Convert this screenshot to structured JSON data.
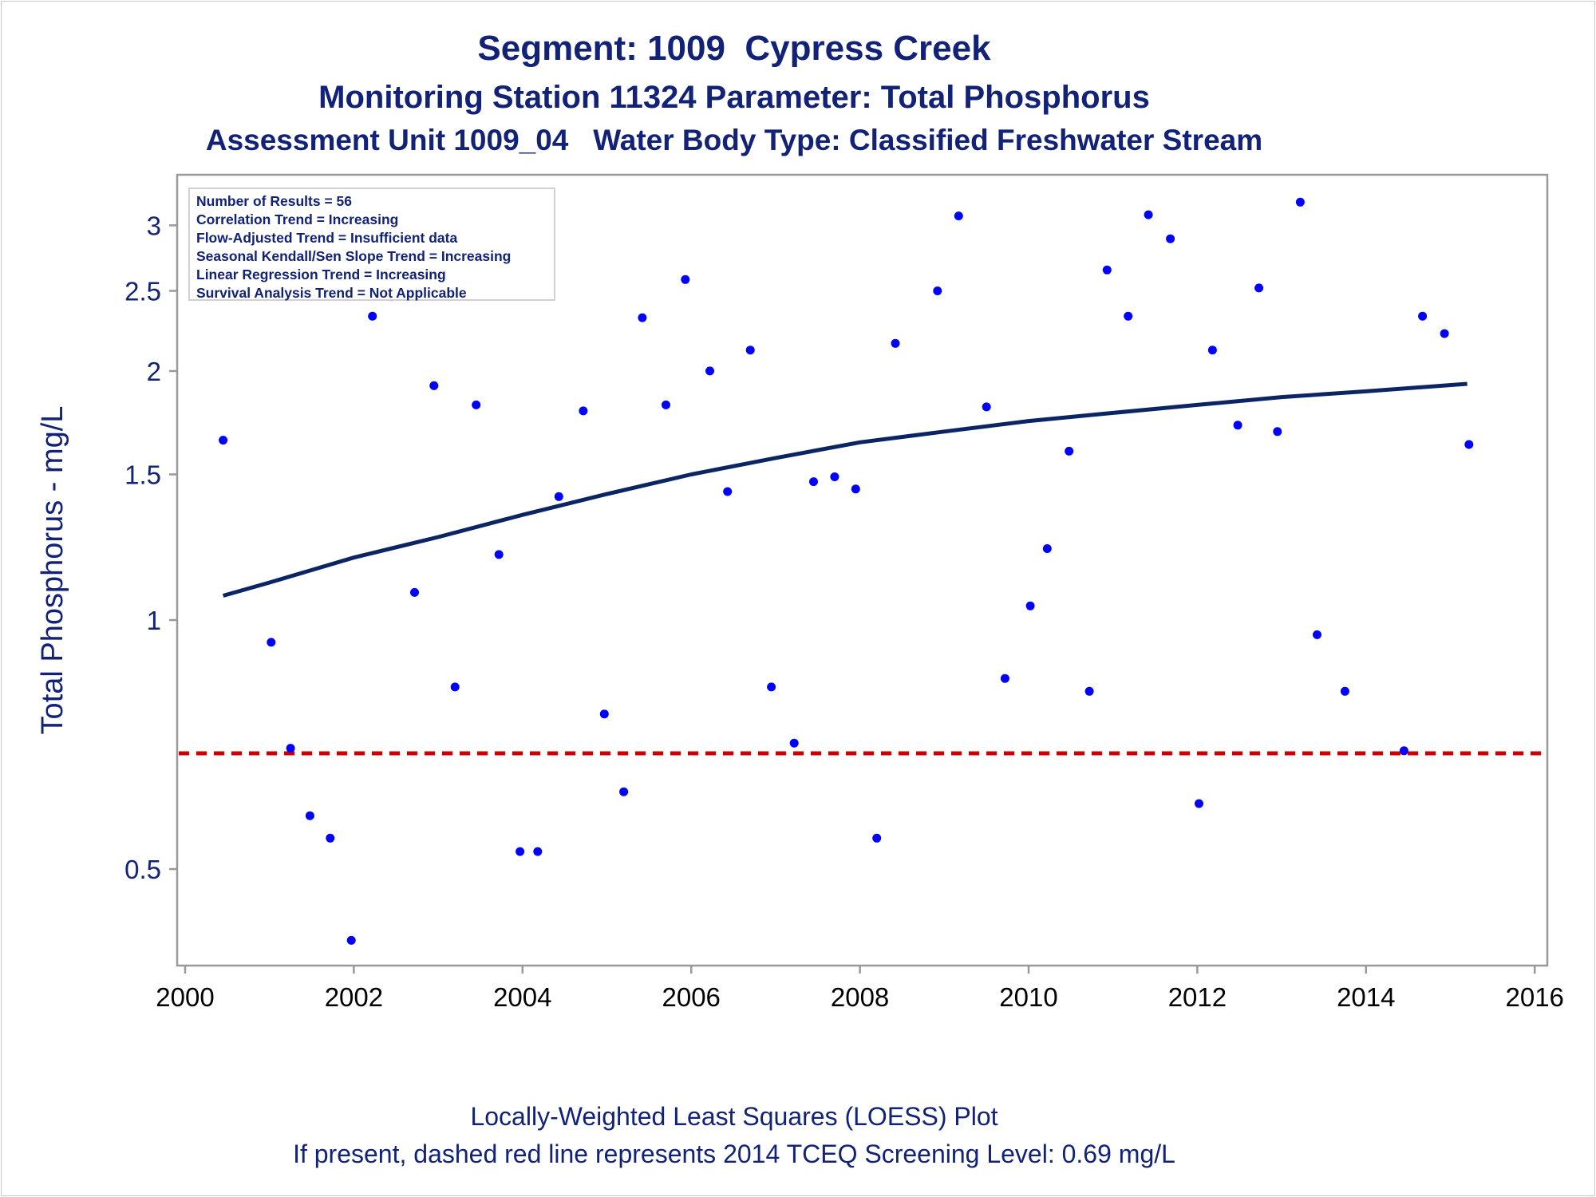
{
  "title": "Segment: 1009  Cypress Creek",
  "subtitle1": "Monitoring Station 11324 Parameter: Total Phosphorus",
  "subtitle2": "Assessment Unit 1009_04   Water Body Type: Classified Freshwater Stream",
  "stats": [
    "Number of Results = 56",
    "Correlation Trend = Increasing",
    "Flow-Adjusted Trend = Insufficient data",
    "Seasonal Kendall/Sen Slope Trend = Increasing",
    "Linear Regression Trend = Increasing",
    "Survival Analysis Trend = Not Applicable"
  ],
  "footer1": "Locally-Weighted Least Squares (LOESS) Plot",
  "footer2": "If present, dashed red line represents 2014 TCEQ Screening Level: 0.69 mg/L",
  "colors": {
    "text": "#112277",
    "points": "#0000ff",
    "loess": "#0b2463",
    "screening": "#cc0000",
    "axis": "#999999"
  },
  "chart_data": {
    "type": "scatter",
    "title": "Segment: 1009  Cypress Creek",
    "xlabel": "",
    "ylabel": "Total Phosphorus - mg/L",
    "y_scale": "log",
    "xlim": [
      2000,
      2016
    ],
    "ylim": [
      0.38,
      3.4
    ],
    "x_ticks": [
      2000,
      2002,
      2004,
      2006,
      2008,
      2010,
      2012,
      2014,
      2016
    ],
    "y_ticks": [
      0.5,
      1,
      1.5,
      2,
      2.5,
      3
    ],
    "y_tick_labels": [
      "0.5",
      "1",
      "1.5",
      "2",
      "2.5",
      "3"
    ],
    "screening_level": 0.69,
    "points": [
      {
        "x": 2000.45,
        "y": 1.65
      },
      {
        "x": 2001.02,
        "y": 0.94
      },
      {
        "x": 2001.25,
        "y": 0.7
      },
      {
        "x": 2001.48,
        "y": 0.58
      },
      {
        "x": 2001.72,
        "y": 0.545
      },
      {
        "x": 2001.97,
        "y": 0.41
      },
      {
        "x": 2002.22,
        "y": 2.33
      },
      {
        "x": 2002.45,
        "y": 2.46
      },
      {
        "x": 2002.72,
        "y": 1.08
      },
      {
        "x": 2002.95,
        "y": 1.92
      },
      {
        "x": 2003.2,
        "y": 0.83
      },
      {
        "x": 2003.45,
        "y": 1.82
      },
      {
        "x": 2003.72,
        "y": 1.2
      },
      {
        "x": 2003.97,
        "y": 0.525
      },
      {
        "x": 2004.18,
        "y": 0.525
      },
      {
        "x": 2004.43,
        "y": 1.41
      },
      {
        "x": 2004.72,
        "y": 1.79
      },
      {
        "x": 2004.97,
        "y": 0.77
      },
      {
        "x": 2005.2,
        "y": 0.62
      },
      {
        "x": 2005.42,
        "y": 2.32
      },
      {
        "x": 2005.7,
        "y": 1.82
      },
      {
        "x": 2005.93,
        "y": 2.58
      },
      {
        "x": 2006.22,
        "y": 2.0
      },
      {
        "x": 2006.43,
        "y": 1.43
      },
      {
        "x": 2006.7,
        "y": 2.12
      },
      {
        "x": 2006.95,
        "y": 0.83
      },
      {
        "x": 2007.22,
        "y": 0.71
      },
      {
        "x": 2007.45,
        "y": 1.47
      },
      {
        "x": 2007.7,
        "y": 1.49
      },
      {
        "x": 2007.95,
        "y": 1.44
      },
      {
        "x": 2008.2,
        "y": 0.545
      },
      {
        "x": 2008.42,
        "y": 2.16
      },
      {
        "x": 2008.92,
        "y": 2.5
      },
      {
        "x": 2009.17,
        "y": 3.08
      },
      {
        "x": 2009.5,
        "y": 1.81
      },
      {
        "x": 2009.72,
        "y": 0.85
      },
      {
        "x": 2010.02,
        "y": 1.04
      },
      {
        "x": 2010.22,
        "y": 1.22
      },
      {
        "x": 2010.48,
        "y": 1.6
      },
      {
        "x": 2010.72,
        "y": 0.82
      },
      {
        "x": 2010.93,
        "y": 2.65
      },
      {
        "x": 2011.18,
        "y": 2.33
      },
      {
        "x": 2011.42,
        "y": 3.09
      },
      {
        "x": 2011.68,
        "y": 2.89
      },
      {
        "x": 2012.02,
        "y": 0.6
      },
      {
        "x": 2012.18,
        "y": 2.12
      },
      {
        "x": 2012.48,
        "y": 1.72
      },
      {
        "x": 2012.73,
        "y": 2.52
      },
      {
        "x": 2012.95,
        "y": 1.69
      },
      {
        "x": 2013.22,
        "y": 3.2
      },
      {
        "x": 2013.42,
        "y": 0.96
      },
      {
        "x": 2013.75,
        "y": 0.82
      },
      {
        "x": 2014.45,
        "y": 0.695
      },
      {
        "x": 2014.67,
        "y": 2.33
      },
      {
        "x": 2014.93,
        "y": 2.22
      },
      {
        "x": 2015.22,
        "y": 1.63
      }
    ],
    "loess": [
      {
        "x": 2000.45,
        "y": 1.07
      },
      {
        "x": 2001.0,
        "y": 1.11
      },
      {
        "x": 2002.0,
        "y": 1.19
      },
      {
        "x": 2003.0,
        "y": 1.26
      },
      {
        "x": 2004.0,
        "y": 1.34
      },
      {
        "x": 2005.0,
        "y": 1.42
      },
      {
        "x": 2006.0,
        "y": 1.5
      },
      {
        "x": 2007.0,
        "y": 1.57
      },
      {
        "x": 2008.0,
        "y": 1.64
      },
      {
        "x": 2009.0,
        "y": 1.69
      },
      {
        "x": 2010.0,
        "y": 1.74
      },
      {
        "x": 2011.0,
        "y": 1.78
      },
      {
        "x": 2012.0,
        "y": 1.82
      },
      {
        "x": 2013.0,
        "y": 1.86
      },
      {
        "x": 2014.0,
        "y": 1.89
      },
      {
        "x": 2015.2,
        "y": 1.93
      }
    ]
  }
}
